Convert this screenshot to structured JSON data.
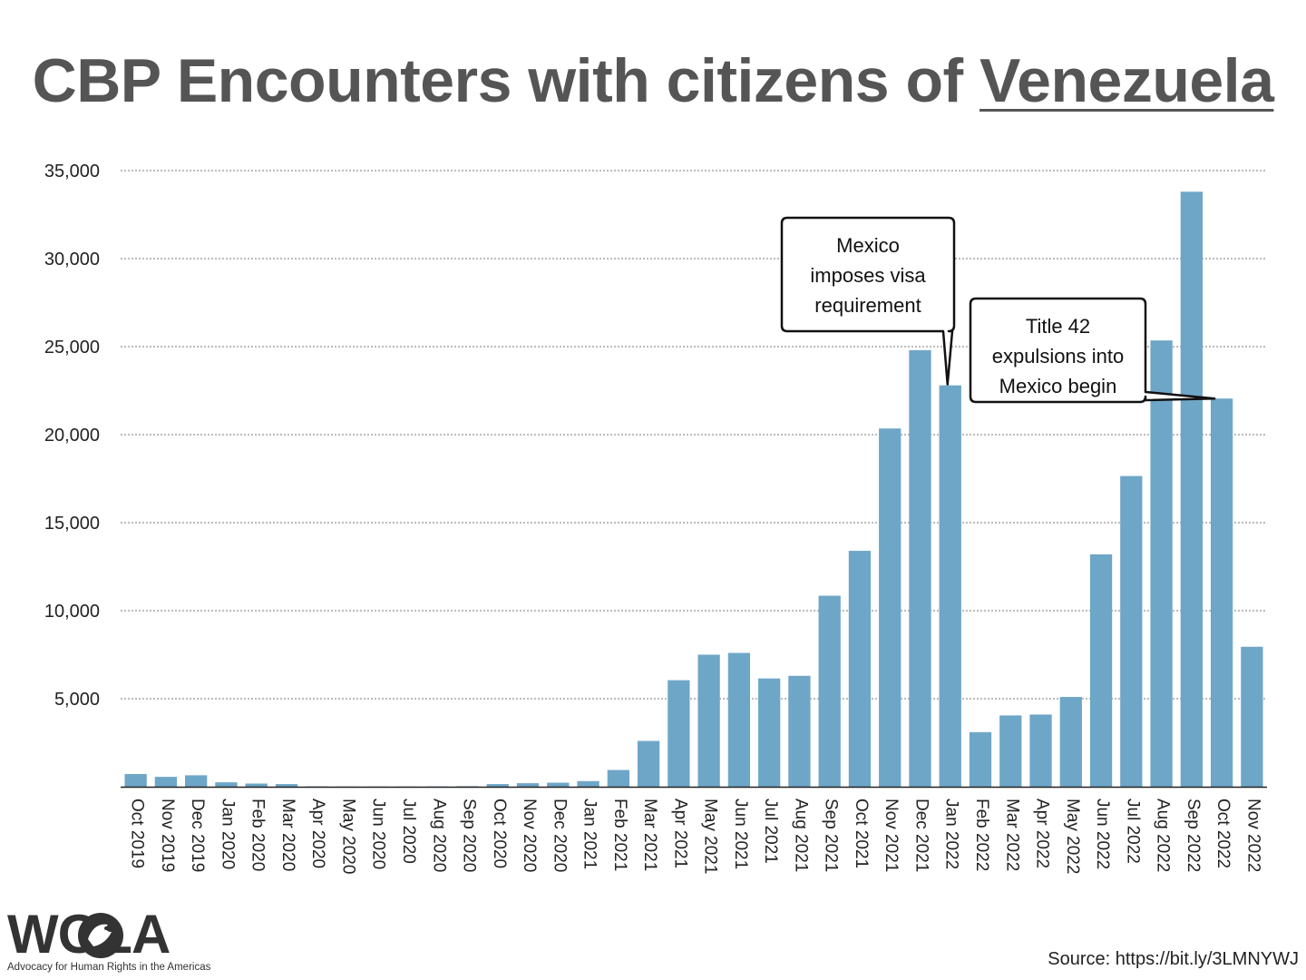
{
  "title": {
    "prefix": "CBP Encounters with citizens of ",
    "country": "Venezuela"
  },
  "chart_data": {
    "type": "bar",
    "title": "CBP Encounters with citizens of Venezuela",
    "xlabel": "",
    "ylabel": "",
    "ylim": [
      0,
      35000
    ],
    "yticks": [
      5000,
      10000,
      15000,
      20000,
      25000,
      30000,
      35000
    ],
    "ytick_labels": [
      "5,000",
      "10,000",
      "15,000",
      "20,000",
      "25,000",
      "30,000",
      "35,000"
    ],
    "grid": true,
    "bar_color": "#6ea6c8",
    "categories": [
      "Oct 2019",
      "Nov 2019",
      "Dec 2019",
      "Jan 2020",
      "Feb 2020",
      "Mar 2020",
      "Apr 2020",
      "May 2020",
      "Jun 2020",
      "Jul 2020",
      "Aug 2020",
      "Sep 2020",
      "Oct 2020",
      "Nov 2020",
      "Dec 2020",
      "Jan 2021",
      "Feb 2021",
      "Mar 2021",
      "Apr 2021",
      "May 2021",
      "Jun 2021",
      "Jul 2021",
      "Aug 2021",
      "Sep 2021",
      "Oct 2021",
      "Nov 2021",
      "Dec 2021",
      "Jan 2022",
      "Feb 2022",
      "Mar 2022",
      "Apr 2022",
      "May 2022",
      "Jun 2022",
      "Jul 2022",
      "Aug 2022",
      "Sep 2022",
      "Oct 2022",
      "Nov 2022"
    ],
    "values": [
      720,
      560,
      650,
      250,
      180,
      150,
      20,
      10,
      10,
      10,
      15,
      30,
      150,
      200,
      230,
      320,
      950,
      2600,
      6050,
      7500,
      7600,
      6150,
      6300,
      10850,
      13400,
      20350,
      24800,
      22800,
      3100,
      4050,
      4100,
      5100,
      13200,
      17650,
      25350,
      33800,
      22050,
      7950
    ],
    "annotations": [
      {
        "lines": [
          "Mexico",
          "imposes visa",
          "requirement"
        ],
        "target": "Jan 2022"
      },
      {
        "lines": [
          "Title 42",
          "expulsions into",
          "Mexico begin"
        ],
        "target": "Oct 2022"
      }
    ]
  },
  "logo": {
    "word": "WOLA",
    "tagline": "Advocacy for Human Rights in the Americas"
  },
  "source": "Source: https://bit.ly/3LMNYWJ"
}
